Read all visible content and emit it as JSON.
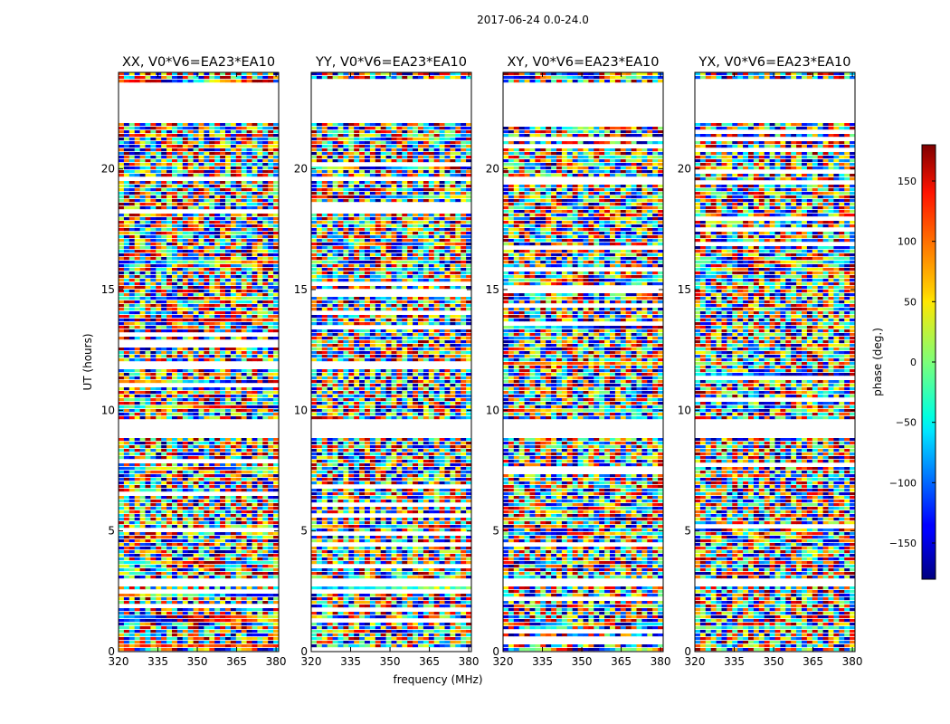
{
  "chart_data": {
    "type": "heatmap",
    "title": "2017-06-24 0.0-24.0",
    "xlabel": "frequency (MHz)",
    "ylabel": "UT (hours)",
    "xlim": [
      320,
      381
    ],
    "ylim": [
      0,
      24
    ],
    "x_ticks": [
      320,
      335,
      350,
      365,
      380
    ],
    "y_ticks": [
      0,
      5,
      10,
      15,
      20
    ],
    "panels": [
      {
        "title": "XX, V0*V6=EA23*EA10"
      },
      {
        "title": "YY, V0*V6=EA23*EA10"
      },
      {
        "title": "XY, V0*V6=EA23*EA10"
      },
      {
        "title": "YX, V0*V6=EA23*EA10"
      }
    ],
    "colorbar": {
      "label": "phase (deg.)",
      "range": [
        -180,
        180
      ],
      "ticks": [
        -150,
        -100,
        -50,
        0,
        50,
        100,
        150
      ],
      "tick_labels": [
        "−150",
        "−100",
        "−50",
        "0",
        "50",
        "100",
        "150"
      ],
      "colormap": "jet"
    },
    "data_gaps_hours": [
      [
        2.65,
        3.0
      ],
      [
        8.9,
        9.6
      ],
      [
        21.9,
        23.6
      ]
    ]
  }
}
